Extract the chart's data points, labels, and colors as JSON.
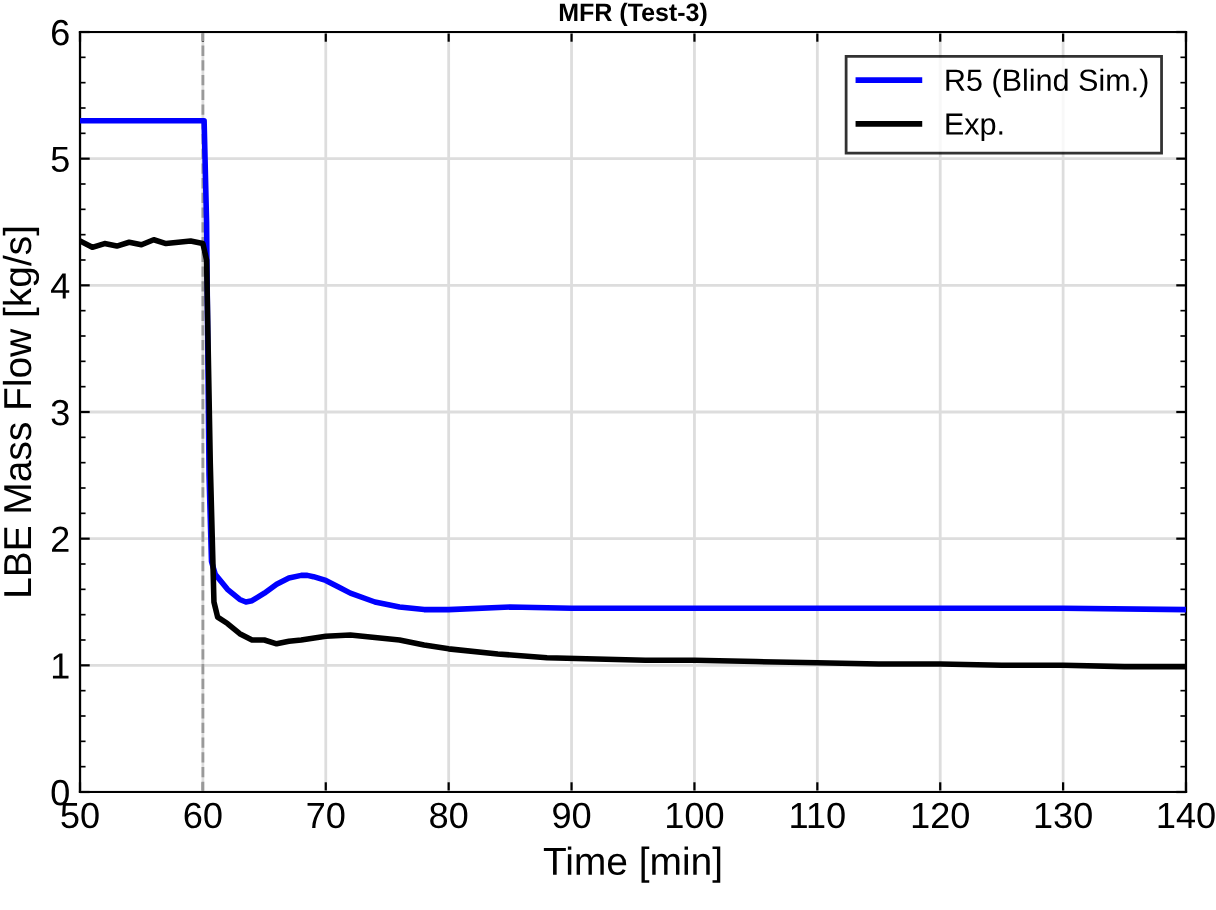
{
  "chart_data": {
    "type": "line",
    "title": "MFR (Test-3)",
    "xlabel": "Time [min]",
    "ylabel": "LBE Mass Flow [kg/s]",
    "xlim": [
      50,
      140
    ],
    "xticks": [
      50,
      60,
      70,
      80,
      90,
      100,
      110,
      120,
      130,
      140
    ],
    "ylim": [
      0,
      6
    ],
    "yticks": [
      0,
      1,
      2,
      3,
      4,
      5,
      6
    ],
    "grid": true,
    "legend": "top right",
    "marker": "none",
    "line_style": "solid",
    "ref_lines": [
      {
        "axis": "x",
        "value": 60,
        "color": "#999999",
        "line_style": "dashed"
      }
    ],
    "series": [
      {
        "name": "R5 (Blind Sim.)",
        "color": "#0000ff",
        "x": [
          50,
          55,
          60.1,
          60.3,
          60.5,
          60.7,
          61,
          62,
          63,
          63.5,
          64,
          65,
          66,
          67,
          68,
          68.5,
          69,
          70,
          71,
          72,
          74,
          76,
          78,
          80,
          85,
          90,
          100,
          110,
          120,
          130,
          140
        ],
        "values": [
          5.3,
          5.3,
          5.3,
          4.5,
          2.5,
          1.82,
          1.72,
          1.6,
          1.52,
          1.5,
          1.51,
          1.57,
          1.64,
          1.69,
          1.71,
          1.71,
          1.7,
          1.67,
          1.62,
          1.57,
          1.5,
          1.46,
          1.44,
          1.44,
          1.46,
          1.45,
          1.45,
          1.45,
          1.45,
          1.45,
          1.44
        ]
      },
      {
        "name": "Exp.",
        "color": "#000000",
        "x": [
          50,
          51,
          52,
          53,
          54,
          55,
          56,
          57,
          58,
          59,
          60,
          60.3,
          60.6,
          60.9,
          61.2,
          62,
          63,
          64,
          65,
          66,
          67,
          68,
          70,
          72,
          74,
          76,
          78,
          80,
          84,
          88,
          92,
          96,
          100,
          105,
          110,
          115,
          120,
          125,
          130,
          135,
          140
        ],
        "values": [
          4.35,
          4.3,
          4.33,
          4.31,
          4.34,
          4.32,
          4.36,
          4.33,
          4.34,
          4.35,
          4.33,
          4.2,
          2.6,
          1.5,
          1.38,
          1.33,
          1.25,
          1.2,
          1.2,
          1.17,
          1.19,
          1.2,
          1.23,
          1.24,
          1.22,
          1.2,
          1.16,
          1.13,
          1.09,
          1.06,
          1.05,
          1.04,
          1.04,
          1.03,
          1.02,
          1.01,
          1.01,
          1.0,
          1.0,
          0.99,
          0.99
        ]
      }
    ]
  }
}
